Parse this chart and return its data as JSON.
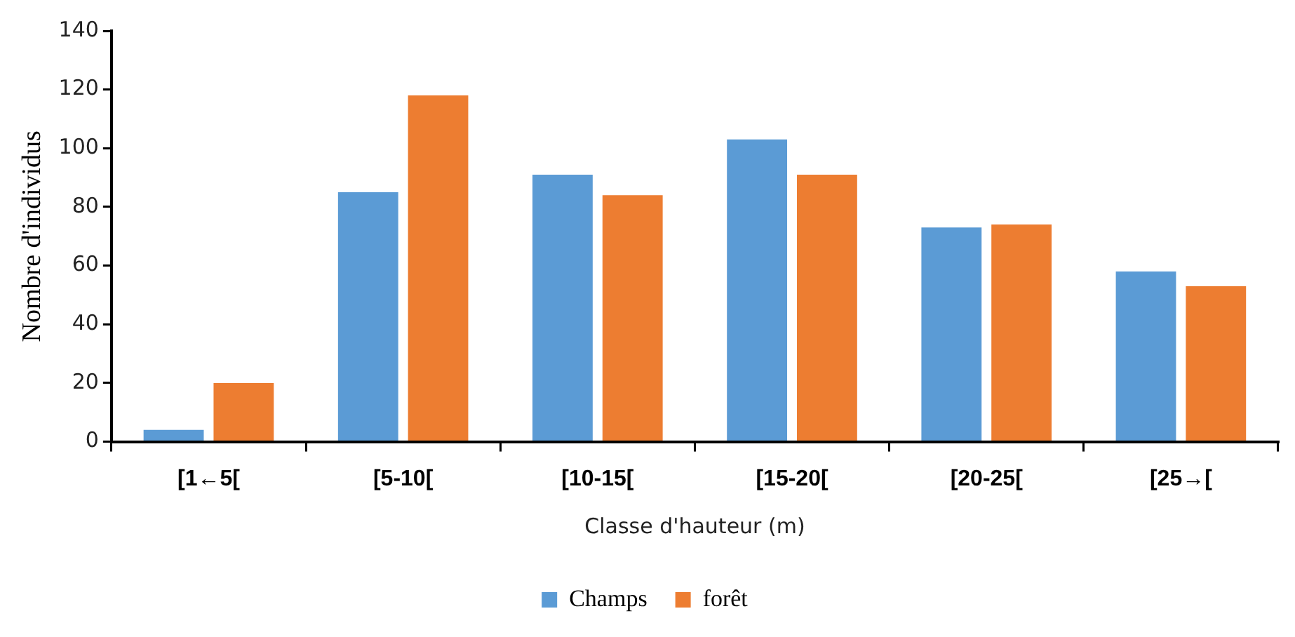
{
  "chart_data": {
    "type": "bar",
    "xlabel": "Classe d'hauteur (m)",
    "ylabel": "Nombre d'individus",
    "categories": [
      "[1←5[",
      "[5-10[",
      "[10-15[",
      "[15-20[",
      "[20-25[",
      "[25→["
    ],
    "series": [
      {
        "name": "Champs",
        "color": "#5b9bd5",
        "values": [
          4,
          85,
          91,
          103,
          73,
          58
        ]
      },
      {
        "name": "forêt",
        "color": "#ed7d31",
        "values": [
          20,
          118,
          84,
          91,
          74,
          53
        ]
      }
    ],
    "ylim": [
      0,
      140
    ],
    "yticks": [
      0,
      20,
      40,
      60,
      80,
      100,
      120,
      140
    ],
    "grid": false,
    "legend": "bottom"
  }
}
